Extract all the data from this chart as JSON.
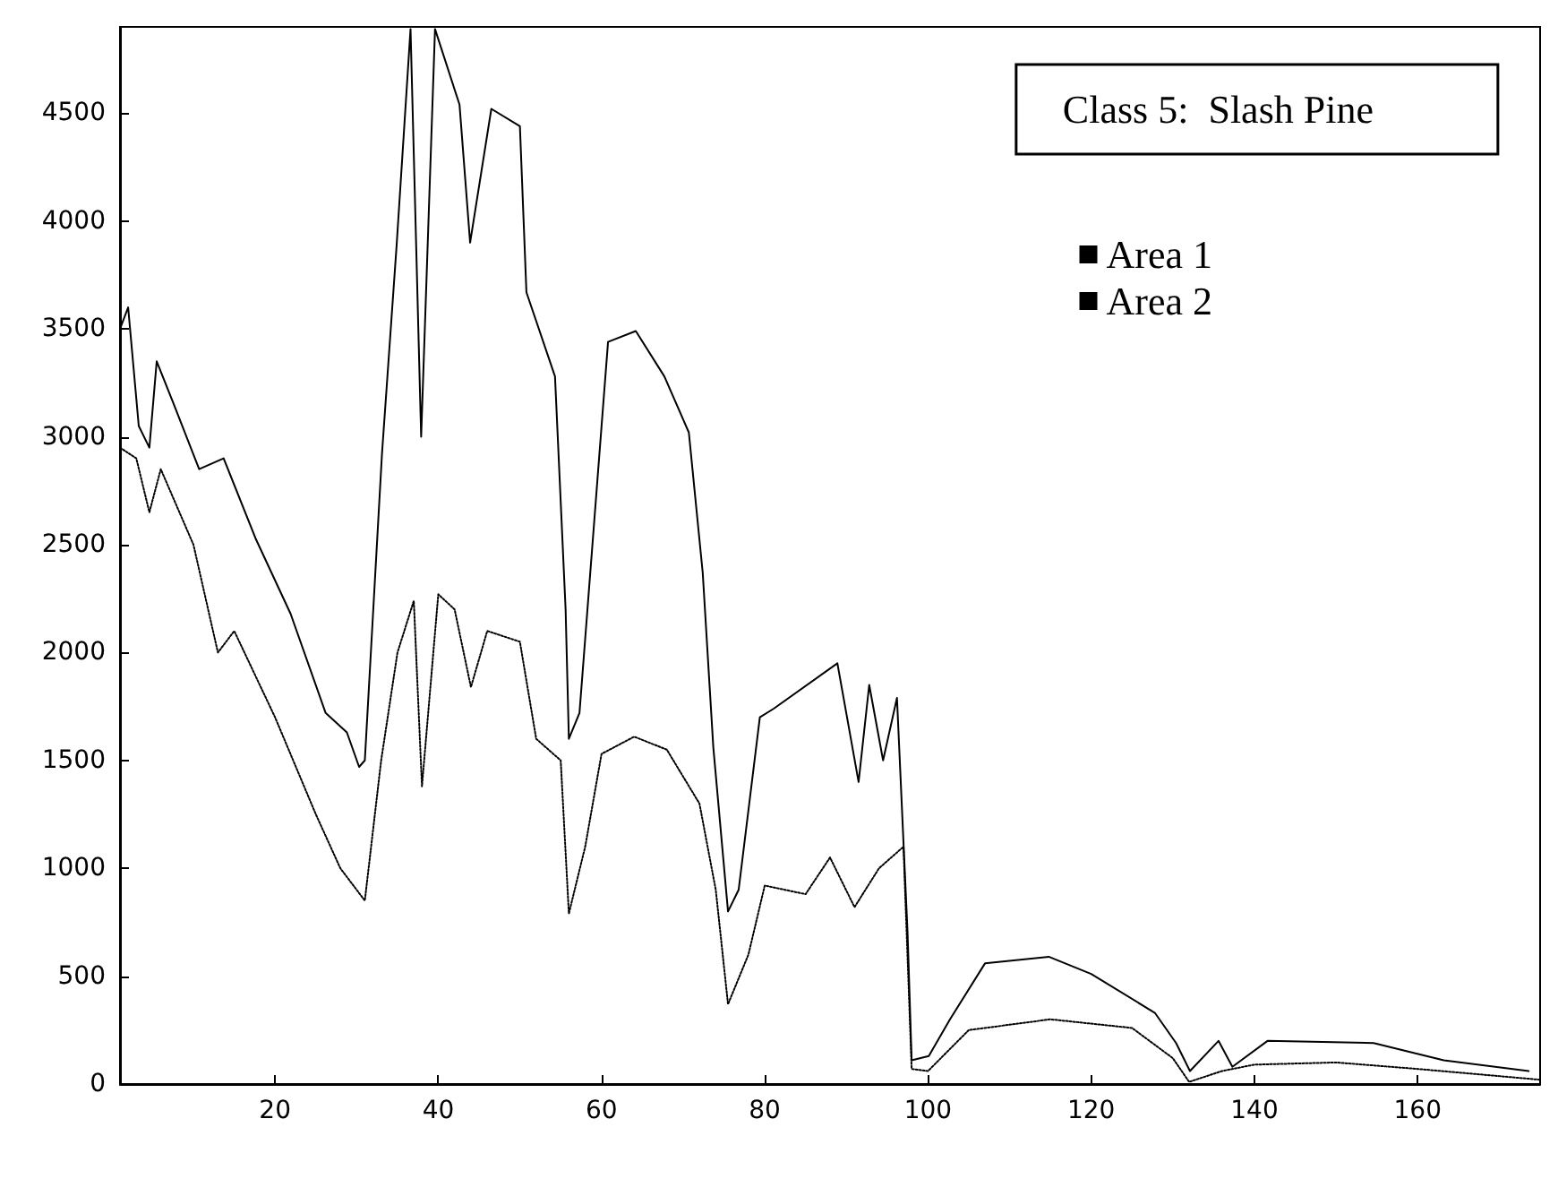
{
  "chart_data": {
    "type": "line",
    "title": "Class 5:  Slash Pine",
    "xlim": [
      1,
      175
    ],
    "xticks": [
      20,
      40,
      60,
      80,
      100,
      120,
      140,
      160
    ],
    "ylim": [
      0,
      4900
    ],
    "yticks": [
      0,
      500,
      1000,
      1500,
      2000,
      2500,
      3000,
      3500,
      4000,
      4500
    ],
    "grid": false,
    "legend": "top right",
    "marker": "none",
    "series": [
      {
        "name": "Area 1",
        "color": "#000000",
        "line_style": "solid",
        "x": [
          1,
          2,
          3.3,
          4.6,
          5.5,
          7.6,
          10.7,
          13.7,
          17.6,
          21.9,
          26.2,
          28.8,
          30.3,
          31,
          33.1,
          34.9,
          36.6,
          37.9,
          39.6,
          42.6,
          43.9,
          46.5,
          50,
          50.8,
          54.3,
          55.6,
          56,
          57.3,
          60.8,
          64.2,
          67.7,
          70.7,
          72.4,
          73.7,
          75.5,
          76.8,
          79.4,
          81.1,
          88.9,
          91.5,
          92.8,
          94.5,
          96.2,
          97.5,
          98,
          100.1,
          102.7,
          107,
          114.8,
          120,
          127.8,
          130.4,
          132.1,
          135.6,
          137.3,
          141.6,
          154.6,
          163.2,
          173.6
        ],
        "values": [
          3500,
          3600,
          3050,
          2950,
          3350,
          3150,
          2850,
          2900,
          2530,
          2180,
          1720,
          1630,
          1470,
          1500,
          2920,
          3890,
          4890,
          3000,
          4890,
          4540,
          3900,
          4520,
          4440,
          3670,
          3280,
          2200,
          1600,
          1720,
          3440,
          3490,
          3280,
          3020,
          2370,
          1560,
          800,
          900,
          1700,
          1740,
          1950,
          1400,
          1850,
          1500,
          1790,
          700,
          110,
          130,
          300,
          560,
          590,
          510,
          330,
          190,
          60,
          200,
          80,
          200,
          190,
          110,
          60
        ]
      },
      {
        "name": "Area 2",
        "color": "#000000",
        "line_style": "dotted",
        "x": [
          1,
          3,
          4.6,
          6,
          10,
          13,
          15,
          20,
          25,
          28,
          31,
          33,
          35,
          37,
          38,
          40,
          42,
          44,
          46,
          50,
          52,
          55,
          56,
          58,
          60,
          64,
          68,
          72,
          74,
          75.5,
          78,
          80,
          85,
          88,
          91,
          94,
          97,
          98,
          100,
          105,
          115,
          125,
          130,
          132,
          136,
          140,
          150,
          160,
          175
        ],
        "values": [
          2950,
          2900,
          2650,
          2850,
          2500,
          2000,
          2100,
          1700,
          1250,
          1000,
          850,
          1500,
          2000,
          2240,
          1380,
          2270,
          2200,
          1840,
          2100,
          2050,
          1600,
          1500,
          790,
          1100,
          1530,
          1610,
          1550,
          1300,
          900,
          370,
          600,
          920,
          880,
          1050,
          820,
          1000,
          1100,
          70,
          60,
          250,
          300,
          260,
          120,
          10,
          60,
          90,
          100,
          70,
          20
        ]
      }
    ]
  }
}
